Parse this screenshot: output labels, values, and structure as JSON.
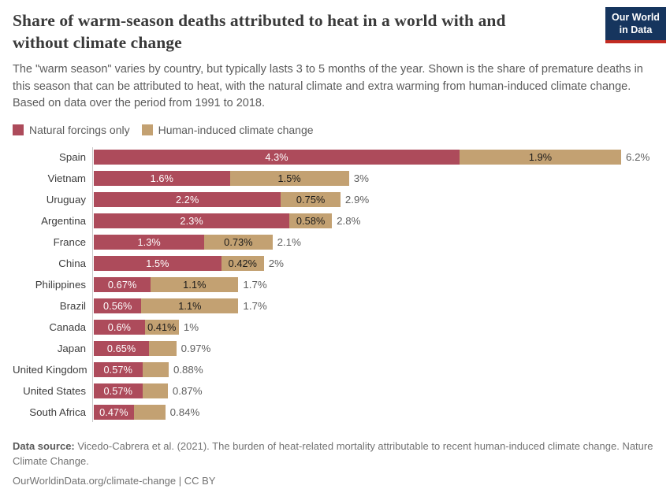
{
  "header": {
    "title": "Share of warm-season deaths attributed to heat in a world with and without climate change",
    "subtitle": "The \"warm season\" varies by country, but typically lasts 3 to 5 months of the year. Shown is the share of premature deaths in this season that can be attributed to heat, with the natural climate and extra warming from human-induced climate change. Based on data over the period from 1991 to 2018.",
    "logo": {
      "line1": "Our World",
      "line2": "in Data",
      "bg_color": "#16355e",
      "stripe_color": "#c22b22"
    }
  },
  "legend": {
    "items": [
      {
        "label": "Natural forcings only",
        "color": "#ad4b5b"
      },
      {
        "label": "Human-induced climate change",
        "color": "#c3a172"
      }
    ]
  },
  "chart_data": {
    "type": "bar",
    "variant": "horizontal-stacked",
    "unit": "%",
    "xlim": [
      0,
      6.2
    ],
    "grid": false,
    "legend_position": "top-left",
    "series_names": [
      "Natural forcings only",
      "Human-induced climate change"
    ],
    "in_bar_label_colors": {
      "natural": "#ffffff",
      "human": "#1a1a1a"
    },
    "rows": [
      {
        "country": "Spain",
        "natural": 4.3,
        "natural_label": "4.3%",
        "human": 1.9,
        "human_label": "1.9%",
        "total": 6.2,
        "total_label": "6.2%"
      },
      {
        "country": "Vietnam",
        "natural": 1.6,
        "natural_label": "1.6%",
        "human": 1.5,
        "human_label": "1.5%",
        "total": 3.0,
        "total_label": "3%"
      },
      {
        "country": "Uruguay",
        "natural": 2.2,
        "natural_label": "2.2%",
        "human": 0.75,
        "human_label": "0.75%",
        "total": 2.9,
        "total_label": "2.9%"
      },
      {
        "country": "Argentina",
        "natural": 2.3,
        "natural_label": "2.3%",
        "human": 0.58,
        "human_label": "0.58%",
        "total": 2.8,
        "total_label": "2.8%"
      },
      {
        "country": "France",
        "natural": 1.3,
        "natural_label": "1.3%",
        "human": 0.73,
        "human_label": "0.73%",
        "total": 2.1,
        "total_label": "2.1%"
      },
      {
        "country": "China",
        "natural": 1.5,
        "natural_label": "1.5%",
        "human": 0.42,
        "human_label": "0.42%",
        "total": 2.0,
        "total_label": "2%"
      },
      {
        "country": "Philippines",
        "natural": 0.67,
        "natural_label": "0.67%",
        "human": 1.1,
        "human_label": "1.1%",
        "total": 1.7,
        "total_label": "1.7%"
      },
      {
        "country": "Brazil",
        "natural": 0.56,
        "natural_label": "0.56%",
        "human": 1.1,
        "human_label": "1.1%",
        "total": 1.7,
        "total_label": "1.7%"
      },
      {
        "country": "Canada",
        "natural": 0.6,
        "natural_label": "0.6%",
        "human": 0.41,
        "human_label": "0.41%",
        "total": 1.0,
        "total_label": "1%"
      },
      {
        "country": "Japan",
        "natural": 0.65,
        "natural_label": "0.65%",
        "human": 0.32,
        "human_label": null,
        "total": 0.97,
        "total_label": "0.97%"
      },
      {
        "country": "United Kingdom",
        "natural": 0.57,
        "natural_label": "0.57%",
        "human": 0.31,
        "human_label": null,
        "total": 0.88,
        "total_label": "0.88%"
      },
      {
        "country": "United States",
        "natural": 0.57,
        "natural_label": "0.57%",
        "human": 0.3,
        "human_label": null,
        "total": 0.87,
        "total_label": "0.87%"
      },
      {
        "country": "South Africa",
        "natural": 0.47,
        "natural_label": "0.47%",
        "human": 0.37,
        "human_label": null,
        "total": 0.84,
        "total_label": "0.84%"
      }
    ]
  },
  "footer": {
    "data_source_label": "Data source:",
    "data_source_text": " Vicedo-Cabrera et al. (2021). The burden of heat-related mortality attributable to recent human-induced climate change. Nature Climate Change.",
    "link_text": "OurWorldinData.org/climate-change",
    "license_text": " | CC BY"
  }
}
